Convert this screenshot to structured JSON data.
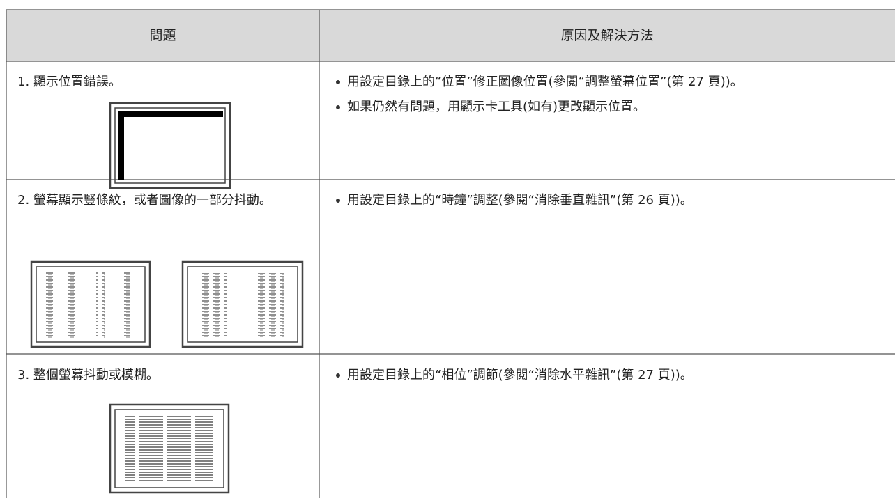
{
  "table": {
    "header": [
      "問題",
      "原因及解決方法"
    ],
    "rows": [
      {
        "problem": "1. 顯示位置錯誤。",
        "solutions": [
          "用設定目錄上的“位置”修正圖像位置(參閱“調整螢幕位置”(第 27 頁))。",
          "如果仍然有問題，用顯示卡工具(如有)更改顯示位置。"
        ]
      },
      {
        "problem": "2. 螢幕顯示豎條紋，或者圖像的一部分抖動。",
        "solutions": [
          "用設定目錄上的“時鐘”調整(參閱“消除垂直雜訊”(第 26 頁))。"
        ]
      },
      {
        "problem": "3. 整個螢幕抖動或模糊。",
        "solutions": [
          "用設定目錄上的“相位”調節(參閱“消除水平雜訊”(第 27 頁))。"
        ]
      }
    ]
  }
}
